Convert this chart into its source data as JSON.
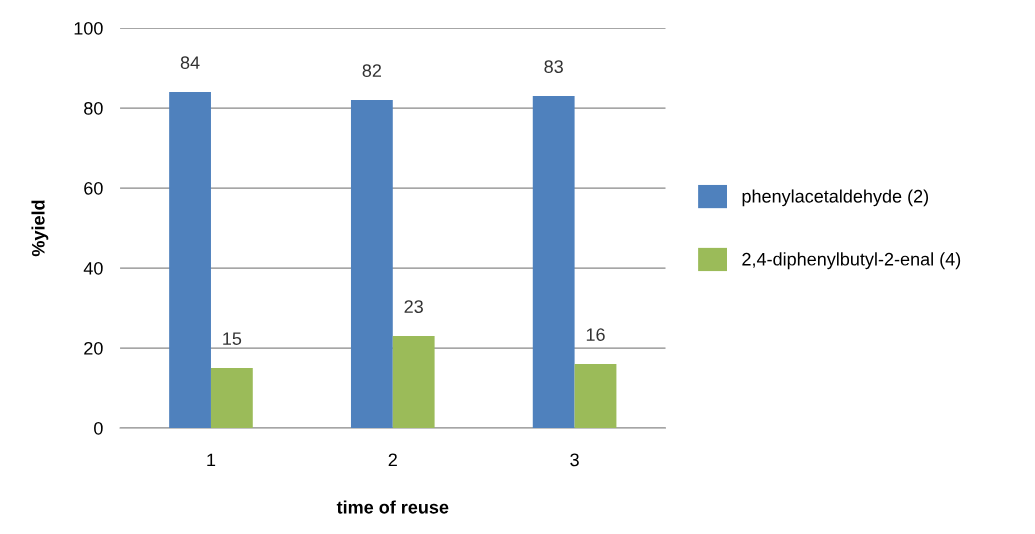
{
  "chart_data": {
    "type": "bar",
    "xlabel": "time of reuse",
    "ylabel": "%yield",
    "categories": [
      "1",
      "2",
      "3"
    ],
    "series": [
      {
        "name": "phenylacetaldehyde (2)",
        "color": "#4f81bd",
        "values": [
          84,
          82,
          83
        ]
      },
      {
        "name": "2,4-diphenylbutyl-2-enal (4)",
        "color": "#9bbb59",
        "values": [
          15,
          23,
          16
        ]
      }
    ],
    "ylim": [
      0,
      100
    ],
    "yticks": [
      0,
      20,
      40,
      60,
      80,
      100
    ],
    "grid": "y",
    "legend": "right",
    "data_labels": true
  }
}
